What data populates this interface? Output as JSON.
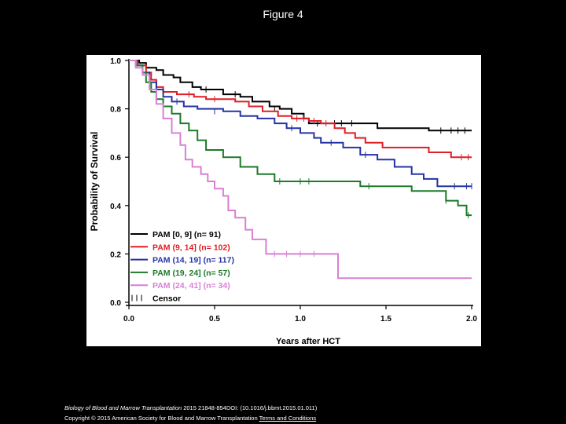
{
  "slide": {
    "title": "Figure 4",
    "citation_journal": "Biology of Blood and Marrow Transplantation",
    "citation_rest": " 2015 21848-854DOI: (10.1016/j.bbmt.2015.01.011)",
    "copyright": "Copyright © 2015 American Society for Blood and Marrow Transplantation ",
    "terms_link": "Terms and Conditions"
  },
  "chart_data": {
    "type": "line",
    "subtype": "kaplan-meier-step",
    "title": "",
    "xlabel": "Years after HCT",
    "ylabel": "Probability of Survival",
    "xlim": [
      0,
      2.0
    ],
    "ylim": [
      0,
      1.0
    ],
    "x_ticks": [
      "0.0",
      "0.5",
      "1.0",
      "1.5",
      "2.0"
    ],
    "y_ticks": [
      "0.0",
      "0.2",
      "0.4",
      "0.6",
      "0.8",
      "1.0"
    ],
    "legend_position": "bottom-left",
    "censor_label": "Censor",
    "series": [
      {
        "name": "PAM [0, 9]  (n= 91)",
        "color": "#000000",
        "points": [
          [
            0,
            1.0
          ],
          [
            0.06,
            0.99
          ],
          [
            0.1,
            0.97
          ],
          [
            0.16,
            0.96
          ],
          [
            0.2,
            0.94
          ],
          [
            0.26,
            0.93
          ],
          [
            0.3,
            0.91
          ],
          [
            0.37,
            0.89
          ],
          [
            0.42,
            0.88
          ],
          [
            0.55,
            0.86
          ],
          [
            0.65,
            0.85
          ],
          [
            0.72,
            0.83
          ],
          [
            0.82,
            0.81
          ],
          [
            0.88,
            0.8
          ],
          [
            0.95,
            0.78
          ],
          [
            1.02,
            0.76
          ],
          [
            1.05,
            0.74
          ],
          [
            1.15,
            0.74
          ],
          [
            1.45,
            0.72
          ],
          [
            1.75,
            0.71
          ],
          [
            2.0,
            0.71
          ]
        ],
        "censors": [
          [
            0.45,
            0.88
          ],
          [
            0.62,
            0.86
          ],
          [
            0.85,
            0.8
          ],
          [
            1.1,
            0.74
          ],
          [
            1.2,
            0.74
          ],
          [
            1.24,
            0.74
          ],
          [
            1.3,
            0.74
          ],
          [
            1.82,
            0.71
          ],
          [
            1.88,
            0.71
          ],
          [
            1.92,
            0.71
          ],
          [
            1.96,
            0.71
          ]
        ]
      },
      {
        "name": "PAM (9, 14]  (n= 102)",
        "color": "#dd1f26",
        "points": [
          [
            0,
            1.0
          ],
          [
            0.05,
            0.98
          ],
          [
            0.1,
            0.95
          ],
          [
            0.13,
            0.92
          ],
          [
            0.16,
            0.89
          ],
          [
            0.2,
            0.87
          ],
          [
            0.28,
            0.86
          ],
          [
            0.38,
            0.85
          ],
          [
            0.45,
            0.84
          ],
          [
            0.62,
            0.83
          ],
          [
            0.7,
            0.81
          ],
          [
            0.78,
            0.79
          ],
          [
            0.87,
            0.77
          ],
          [
            0.95,
            0.76
          ],
          [
            1.05,
            0.75
          ],
          [
            1.12,
            0.74
          ],
          [
            1.2,
            0.72
          ],
          [
            1.26,
            0.7
          ],
          [
            1.32,
            0.68
          ],
          [
            1.38,
            0.66
          ],
          [
            1.48,
            0.64
          ],
          [
            1.75,
            0.62
          ],
          [
            1.88,
            0.6
          ],
          [
            2.0,
            0.6
          ]
        ],
        "censors": [
          [
            0.35,
            0.86
          ],
          [
            0.5,
            0.84
          ],
          [
            0.98,
            0.76
          ],
          [
            1.02,
            0.76
          ],
          [
            1.08,
            0.75
          ],
          [
            1.15,
            0.74
          ],
          [
            1.94,
            0.6
          ],
          [
            1.98,
            0.6
          ]
        ]
      },
      {
        "name": "PAM (14, 19]  (n= 117)",
        "color": "#2533a5",
        "points": [
          [
            0,
            1.0
          ],
          [
            0.04,
            0.98
          ],
          [
            0.08,
            0.95
          ],
          [
            0.12,
            0.91
          ],
          [
            0.16,
            0.88
          ],
          [
            0.2,
            0.85
          ],
          [
            0.25,
            0.83
          ],
          [
            0.32,
            0.81
          ],
          [
            0.4,
            0.8
          ],
          [
            0.55,
            0.79
          ],
          [
            0.65,
            0.77
          ],
          [
            0.75,
            0.76
          ],
          [
            0.85,
            0.74
          ],
          [
            0.92,
            0.72
          ],
          [
            1.0,
            0.7
          ],
          [
            1.08,
            0.68
          ],
          [
            1.12,
            0.66
          ],
          [
            1.25,
            0.64
          ],
          [
            1.35,
            0.61
          ],
          [
            1.45,
            0.59
          ],
          [
            1.55,
            0.56
          ],
          [
            1.65,
            0.53
          ],
          [
            1.72,
            0.51
          ],
          [
            1.8,
            0.48
          ],
          [
            2.0,
            0.48
          ]
        ],
        "censors": [
          [
            0.28,
            0.83
          ],
          [
            0.5,
            0.79
          ],
          [
            0.95,
            0.72
          ],
          [
            1.18,
            0.66
          ],
          [
            1.38,
            0.61
          ],
          [
            1.9,
            0.48
          ],
          [
            1.97,
            0.48
          ],
          [
            2.0,
            0.48
          ]
        ]
      },
      {
        "name": "PAM (19, 24]  (n= 57)",
        "color": "#1c7a2a",
        "points": [
          [
            0,
            1.0
          ],
          [
            0.04,
            0.98
          ],
          [
            0.08,
            0.95
          ],
          [
            0.1,
            0.91
          ],
          [
            0.13,
            0.87
          ],
          [
            0.16,
            0.84
          ],
          [
            0.2,
            0.81
          ],
          [
            0.25,
            0.78
          ],
          [
            0.3,
            0.74
          ],
          [
            0.35,
            0.71
          ],
          [
            0.4,
            0.67
          ],
          [
            0.45,
            0.63
          ],
          [
            0.55,
            0.6
          ],
          [
            0.65,
            0.56
          ],
          [
            0.75,
            0.53
          ],
          [
            0.85,
            0.5
          ],
          [
            1.0,
            0.5
          ],
          [
            1.35,
            0.48
          ],
          [
            1.65,
            0.46
          ],
          [
            1.85,
            0.42
          ],
          [
            1.92,
            0.4
          ],
          [
            1.97,
            0.36
          ],
          [
            2.0,
            0.36
          ]
        ],
        "censors": [
          [
            0.88,
            0.5
          ],
          [
            1.0,
            0.5
          ],
          [
            1.05,
            0.5
          ],
          [
            1.4,
            0.48
          ],
          [
            1.85,
            0.42
          ],
          [
            1.98,
            0.36
          ]
        ]
      },
      {
        "name": "PAM (24, 41]  (n= 34)",
        "color": "#d97fd6",
        "points": [
          [
            0,
            1.0
          ],
          [
            0.04,
            0.97
          ],
          [
            0.08,
            0.94
          ],
          [
            0.12,
            0.88
          ],
          [
            0.16,
            0.82
          ],
          [
            0.2,
            0.76
          ],
          [
            0.25,
            0.7
          ],
          [
            0.3,
            0.65
          ],
          [
            0.33,
            0.59
          ],
          [
            0.37,
            0.56
          ],
          [
            0.42,
            0.53
          ],
          [
            0.46,
            0.5
          ],
          [
            0.5,
            0.47
          ],
          [
            0.55,
            0.44
          ],
          [
            0.58,
            0.38
          ],
          [
            0.62,
            0.35
          ],
          [
            0.68,
            0.3
          ],
          [
            0.72,
            0.26
          ],
          [
            0.8,
            0.2
          ],
          [
            1.2,
            0.2
          ],
          [
            1.22,
            0.1
          ],
          [
            2.0,
            0.1
          ]
        ],
        "censors": [
          [
            0.85,
            0.2
          ],
          [
            0.92,
            0.2
          ],
          [
            1.0,
            0.2
          ],
          [
            1.08,
            0.2
          ]
        ]
      }
    ]
  }
}
